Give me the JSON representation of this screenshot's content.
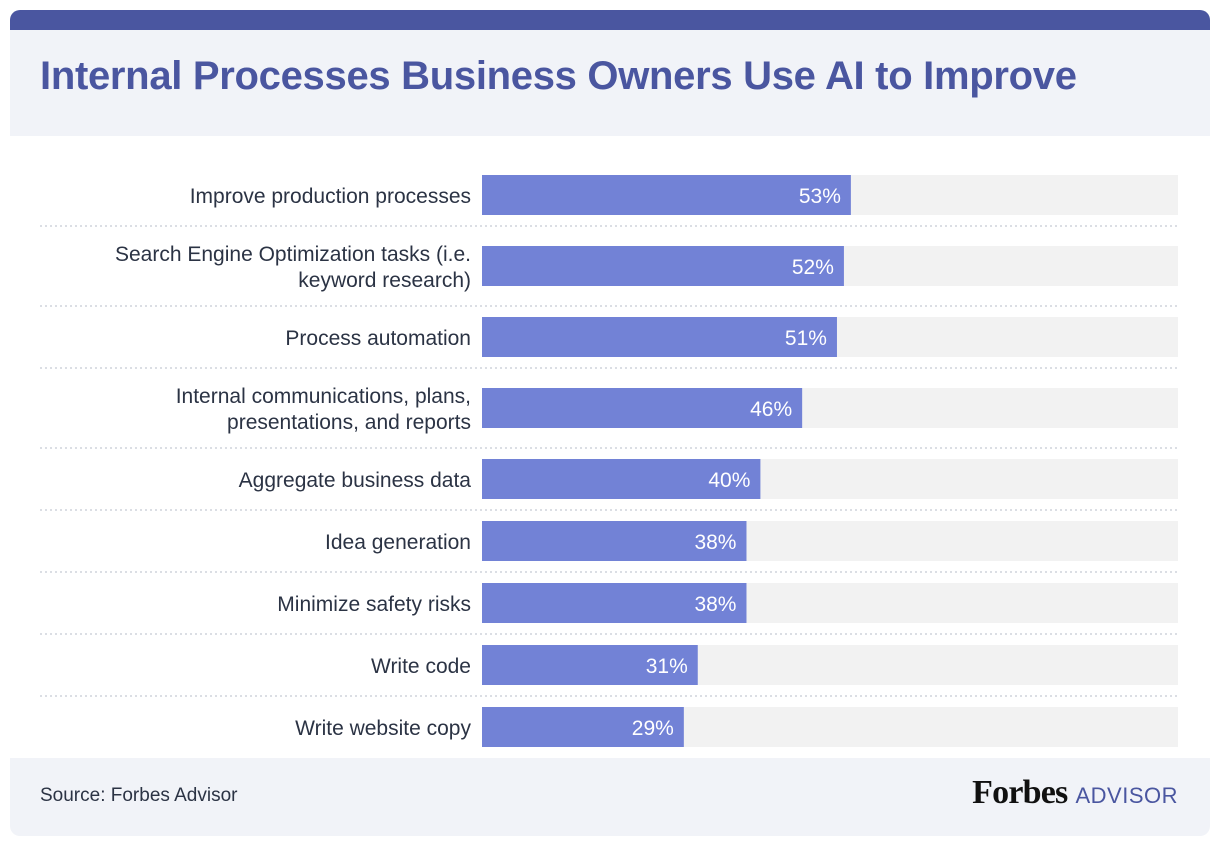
{
  "header": {
    "title": "Internal Processes Business Owners Use AI to Improve"
  },
  "chart_data": {
    "type": "bar",
    "orientation": "horizontal",
    "title": "Internal Processes Business Owners Use AI to Improve",
    "categories": [
      [
        "Improve production processes"
      ],
      [
        "Search Engine Optimization tasks (i.e.",
        "keyword research)"
      ],
      [
        "Process automation"
      ],
      [
        "Internal communications, plans,",
        "presentations, and reports"
      ],
      [
        "Aggregate business data"
      ],
      [
        "Idea generation"
      ],
      [
        "Minimize safety risks"
      ],
      [
        "Write code"
      ],
      [
        "Write website copy"
      ]
    ],
    "values": [
      53,
      52,
      51,
      46,
      40,
      38,
      38,
      31,
      29
    ],
    "data_labels": [
      "53%",
      "52%",
      "51%",
      "46%",
      "40%",
      "38%",
      "38%",
      "31%",
      "29%"
    ],
    "unit": "%",
    "xlim": [
      0,
      100
    ],
    "xlabel": "",
    "ylabel": "",
    "grid": false,
    "legend": "none",
    "colors": {
      "bar": "#7282d6",
      "track": "#f2f2f2",
      "label": "#2b3344",
      "value_label": "#ffffff",
      "separator": "#cfd3dc"
    }
  },
  "footer": {
    "source": "Source: Forbes Advisor",
    "brand_name": "Forbes",
    "brand_sub": "ADVISOR"
  }
}
